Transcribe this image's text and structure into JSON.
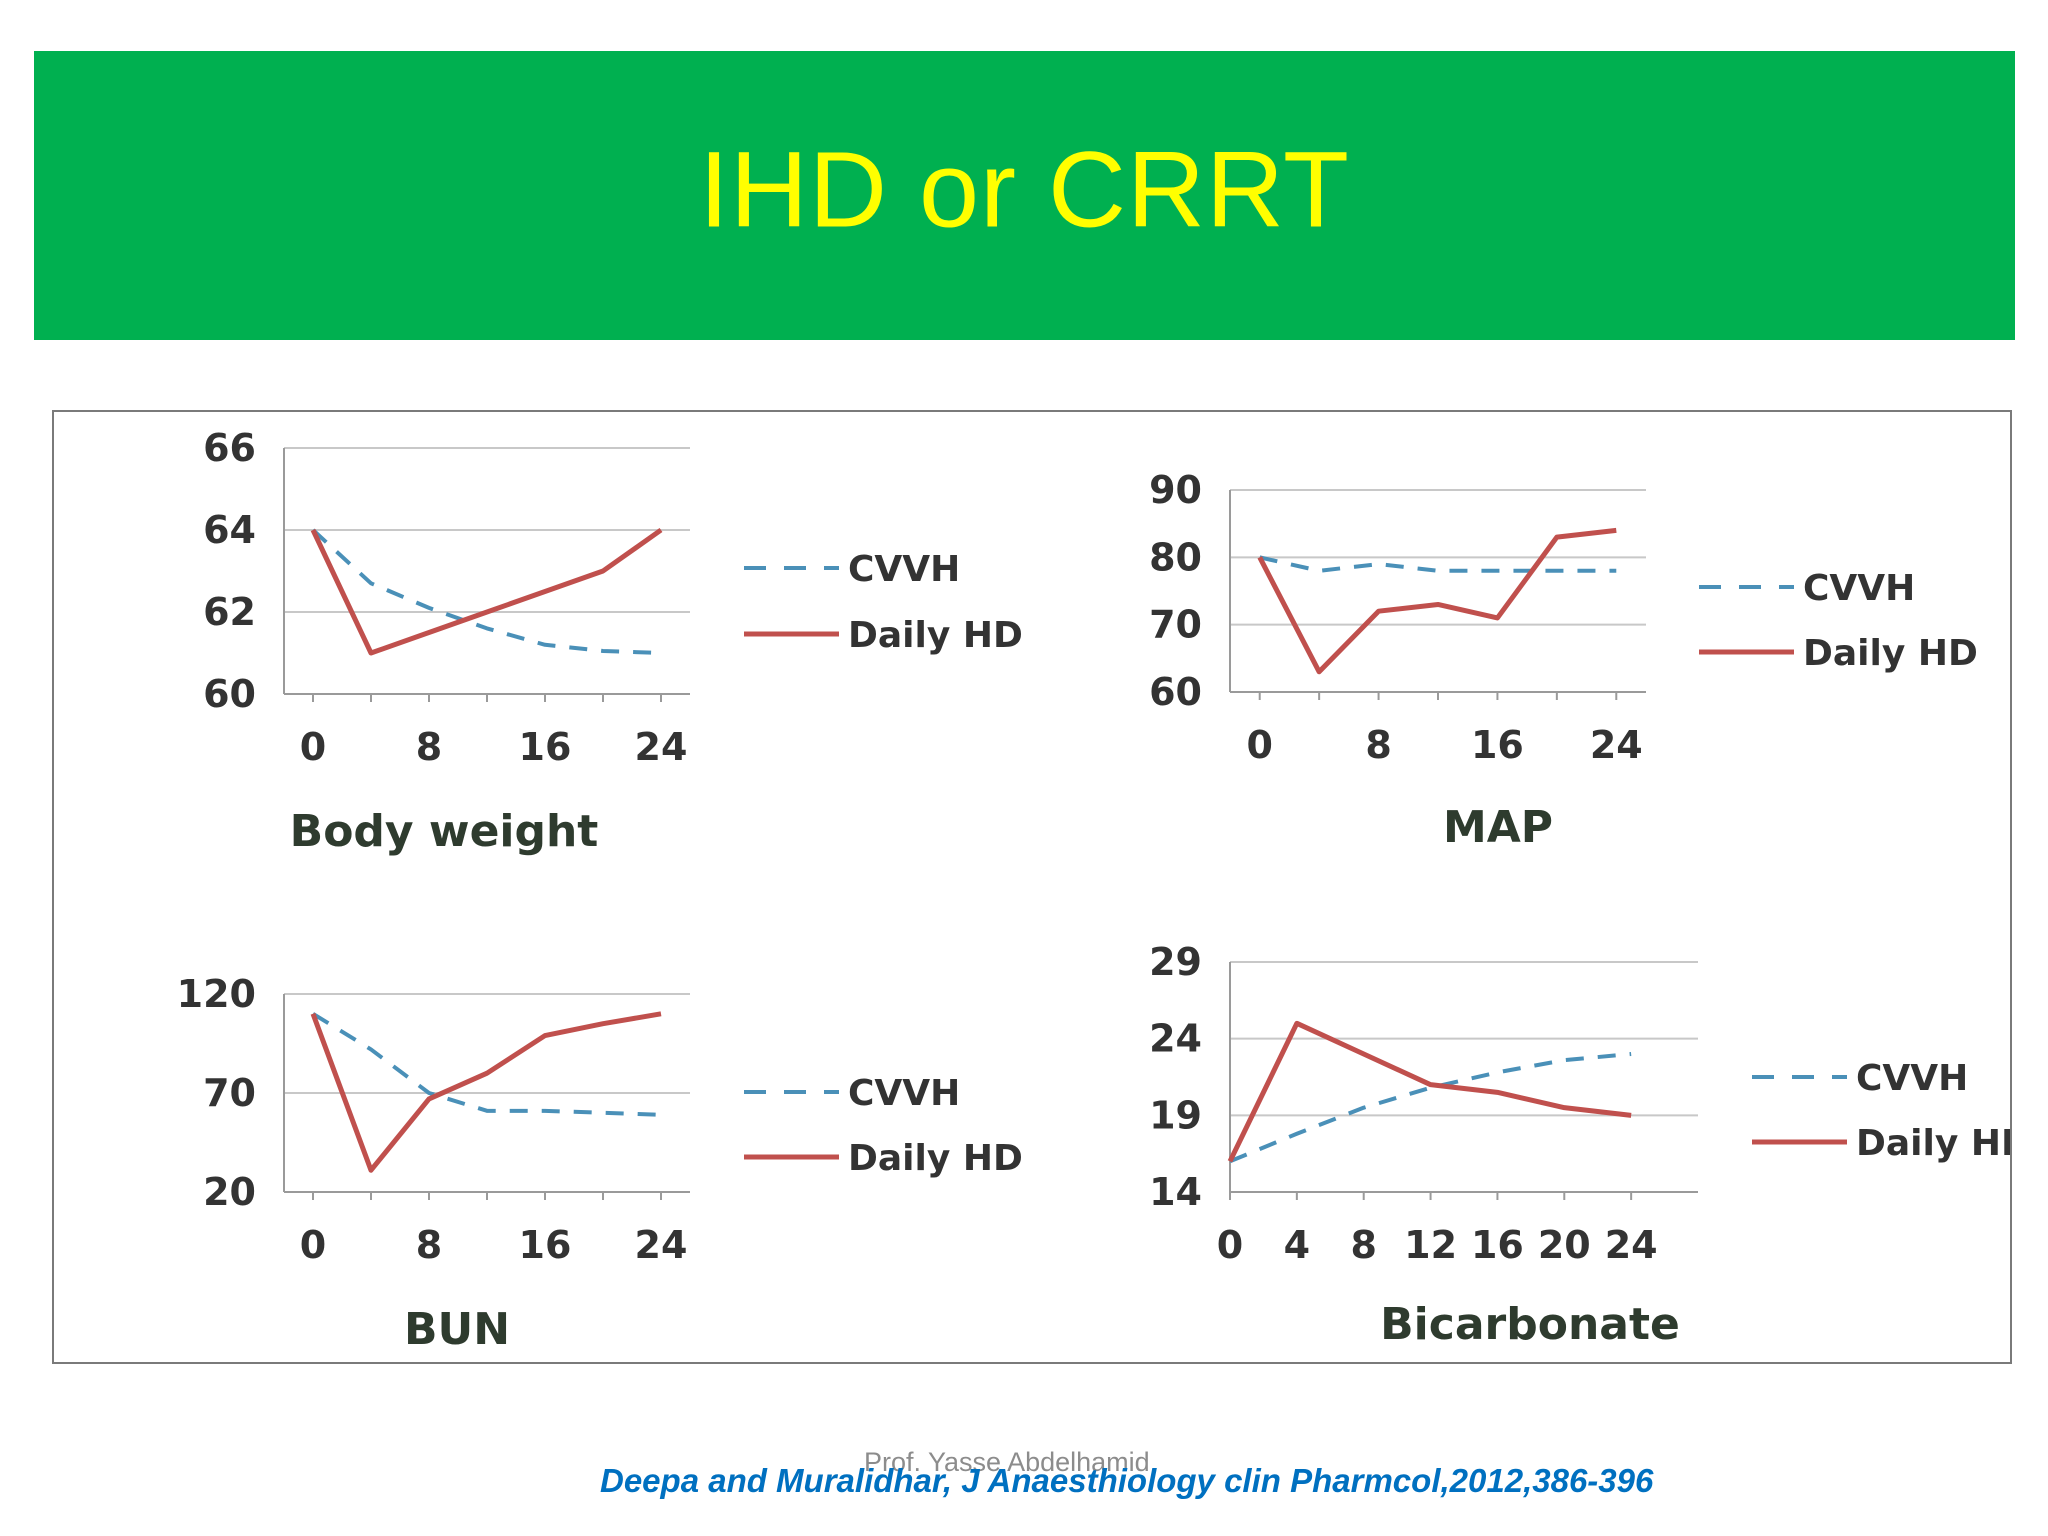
{
  "slide": {
    "title": "IHD or CRRT",
    "citation": "Deepa and Muralidhar, J Anaesthiology clin Pharmcol,2012,386-396",
    "author": "Prof. Yasse Abdelhamid",
    "colors": {
      "banner": "#00b050",
      "title": "#ffff00",
      "citation": "#0070c0",
      "cvvh": "#4a90b8",
      "daily_hd": "#c0504d"
    }
  },
  "chart_data": [
    {
      "type": "line",
      "title": "Body weight",
      "xlabel": "",
      "ylabel": "",
      "x": [
        0,
        4,
        8,
        12,
        16,
        20,
        24
      ],
      "x_ticks": [
        "0",
        "8",
        "16",
        "24"
      ],
      "y_ticks": [
        "60",
        "62",
        "64",
        "66"
      ],
      "ylim": [
        60,
        66
      ],
      "xlim": [
        -2,
        26
      ],
      "grid": true,
      "legend": "right",
      "series": [
        {
          "name": "CVVH",
          "style": "dashed",
          "values": [
            64,
            62.7,
            62.1,
            61.6,
            61.2,
            61.05,
            61.0
          ]
        },
        {
          "name": "Daily HD",
          "style": "solid",
          "values": [
            64,
            61.0,
            61.5,
            62.0,
            62.5,
            63.0,
            64.0
          ]
        }
      ]
    },
    {
      "type": "line",
      "title": "MAP",
      "xlabel": "",
      "ylabel": "",
      "x": [
        0,
        4,
        8,
        12,
        16,
        20,
        24
      ],
      "x_ticks": [
        "0",
        "8",
        "16",
        "24"
      ],
      "y_ticks": [
        "60",
        "70",
        "80",
        "90"
      ],
      "ylim": [
        60,
        90
      ],
      "xlim": [
        -2,
        26
      ],
      "grid": true,
      "legend": "right",
      "series": [
        {
          "name": "CVVH",
          "style": "dashed",
          "values": [
            80,
            78,
            79,
            78,
            78,
            78,
            78
          ]
        },
        {
          "name": "Daily HD",
          "style": "solid",
          "values": [
            80,
            63,
            72,
            73,
            71,
            83,
            84
          ]
        }
      ]
    },
    {
      "type": "line",
      "title": "BUN",
      "xlabel": "",
      "ylabel": "",
      "x": [
        0,
        4,
        8,
        12,
        16,
        20,
        24
      ],
      "x_ticks": [
        "0",
        "8",
        "16",
        "24"
      ],
      "y_ticks": [
        "20",
        "70",
        "120"
      ],
      "ylim": [
        20,
        120
      ],
      "xlim": [
        -2,
        26
      ],
      "grid": true,
      "legend": "right",
      "series": [
        {
          "name": "CVVH",
          "style": "dashed",
          "values": [
            110,
            92,
            70,
            61,
            61,
            60,
            59
          ]
        },
        {
          "name": "Daily HD",
          "style": "solid",
          "values": [
            110,
            31,
            67,
            80,
            99,
            105,
            110
          ]
        }
      ]
    },
    {
      "type": "line",
      "title": "Bicarbonate",
      "xlabel": "",
      "ylabel": "",
      "x": [
        0,
        4,
        8,
        12,
        16,
        20,
        24
      ],
      "x_ticks": [
        "0",
        "4",
        "8",
        "12",
        "16",
        "20",
        "24"
      ],
      "y_ticks": [
        "14",
        "19",
        "24",
        "29"
      ],
      "ylim": [
        14,
        29
      ],
      "xlim": [
        0,
        28
      ],
      "grid": true,
      "legend": "right",
      "series": [
        {
          "name": "CVVH",
          "style": "dashed",
          "values": [
            16,
            17.8,
            19.5,
            20.8,
            21.8,
            22.6,
            23.0
          ]
        },
        {
          "name": "Daily HD",
          "style": "solid",
          "values": [
            16,
            25,
            23,
            21,
            20.5,
            19.5,
            19.0
          ]
        }
      ]
    }
  ]
}
